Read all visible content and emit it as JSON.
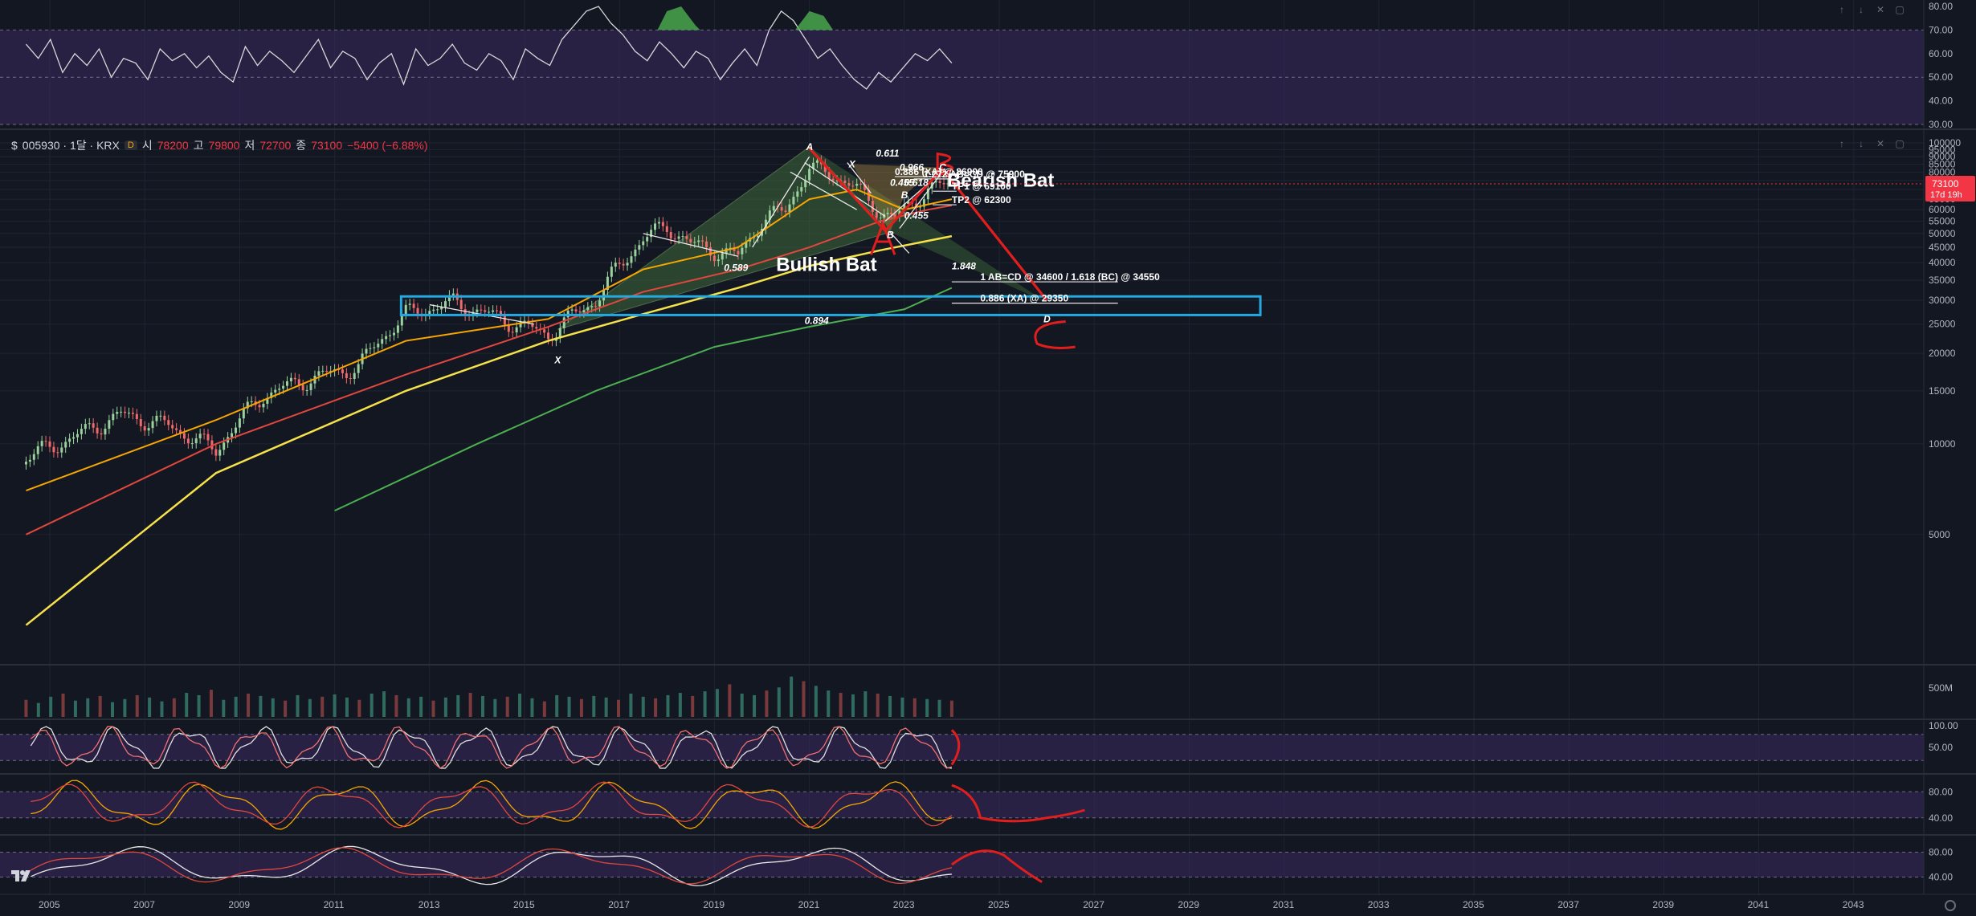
{
  "header": {
    "symbol": "005930 · 1달 · KRX",
    "dot_label": "D",
    "open_label": "시",
    "open": "78200",
    "high_label": "고",
    "high": "79800",
    "low_label": "저",
    "low": "72700",
    "close_label": "종",
    "close": "73100",
    "change": "−5400 (−6.88%)"
  },
  "price_badge": {
    "value": "73100",
    "countdown": "17d 19h"
  },
  "colors": {
    "background": "#131722",
    "grid": "#1f2433",
    "axis_text": "#b2b5be",
    "rsi_band": "#3a2a5e",
    "red_drawing": "#e01e1e",
    "cyan_box": "#23a8e0",
    "pattern_fill": "#3f6a3a",
    "ma_orange": "#f7a600",
    "ma_red": "#e2473e",
    "ma_yellow": "#f5e14a",
    "ma_green": "#4caf50",
    "candle_up": "#9ad19c",
    "candle_down": "#ef6a6a"
  },
  "chart_data": [
    {
      "type": "line",
      "panel": "top-oscillator",
      "y_ticks": [
        "80.00",
        "70.00",
        "60.00",
        "50.00",
        "40.00",
        "30.00"
      ],
      "ylim": [
        30,
        80
      ],
      "series": [
        {
          "values": [
            64,
            58,
            66,
            52,
            60,
            55,
            62,
            50,
            58,
            56,
            49,
            62,
            57,
            60,
            54,
            59,
            52,
            48,
            63,
            55,
            61,
            57,
            52,
            59,
            66,
            54,
            61,
            58,
            49,
            56,
            60,
            47,
            62,
            55,
            58,
            64,
            56,
            53,
            60,
            57,
            49,
            62,
            58,
            55,
            66,
            72,
            78,
            80,
            73,
            68,
            61,
            57,
            65,
            60,
            54,
            61,
            58,
            49,
            56,
            62,
            55,
            70,
            78,
            74,
            66,
            58,
            62,
            55,
            49,
            45,
            52,
            48,
            54,
            60,
            57,
            62,
            56
          ]
        }
      ]
    },
    {
      "type": "candlestick",
      "panel": "main",
      "x_ticks": [
        "2005",
        "2007",
        "2009",
        "2011",
        "2013",
        "2015",
        "2017",
        "2019",
        "2021",
        "2023",
        "2025",
        "2027",
        "2029",
        "2031",
        "2033",
        "2035",
        "2037",
        "2039",
        "2041",
        "2043"
      ],
      "y_ticks": [
        "100000",
        "95000",
        "90000",
        "85000",
        "80000",
        "75000",
        "70000",
        "65000",
        "60000",
        "55000",
        "50000",
        "45000",
        "40000",
        "35000",
        "30000",
        "25000",
        "20000",
        "15000",
        "10000",
        "5000"
      ],
      "ylim": [
        2000,
        100000
      ],
      "close_series": [
        [
          2004.5,
          9000
        ],
        [
          2005.5,
          10500
        ],
        [
          2006.5,
          12500
        ],
        [
          2007.5,
          11500
        ],
        [
          2008.5,
          9500
        ],
        [
          2009.5,
          14500
        ],
        [
          2010.5,
          16500
        ],
        [
          2011.5,
          18000
        ],
        [
          2012.5,
          27000
        ],
        [
          2013.5,
          29500
        ],
        [
          2014.5,
          26000
        ],
        [
          2015.5,
          23000
        ],
        [
          2016.5,
          30000
        ],
        [
          2017.5,
          48000
        ],
        [
          2018.0,
          53000
        ],
        [
          2018.5,
          46000
        ],
        [
          2019.5,
          42000
        ],
        [
          2020.0,
          55000
        ],
        [
          2020.5,
          60000
        ],
        [
          2021.0,
          82000
        ],
        [
          2021.5,
          79000
        ],
        [
          2022.0,
          70000
        ],
        [
          2022.5,
          59000
        ],
        [
          2022.8,
          56000
        ],
        [
          2023.0,
          60000
        ],
        [
          2023.5,
          70000
        ],
        [
          2024.0,
          73100
        ]
      ],
      "moving_averages": [
        {
          "color": "orange",
          "points": [
            [
              2004.5,
              7000
            ],
            [
              2008.5,
              12000
            ],
            [
              2012.5,
              22000
            ],
            [
              2015.5,
              26000
            ],
            [
              2017.5,
              38000
            ],
            [
              2019.5,
              45000
            ],
            [
              2021.0,
              65000
            ],
            [
              2022.0,
              70000
            ],
            [
              2023.0,
              60000
            ],
            [
              2024.0,
              65000
            ]
          ]
        },
        {
          "color": "red",
          "points": [
            [
              2004.5,
              5000
            ],
            [
              2008.5,
              10000
            ],
            [
              2012.5,
              17000
            ],
            [
              2015.5,
              24500
            ],
            [
              2017.5,
              32000
            ],
            [
              2019.5,
              38000
            ],
            [
              2021.0,
              45000
            ],
            [
              2022.5,
              55000
            ],
            [
              2023.5,
              60000
            ],
            [
              2024.0,
              62000
            ]
          ]
        },
        {
          "color": "yellow",
          "points": [
            [
              2004.5,
              2500
            ],
            [
              2008.5,
              8000
            ],
            [
              2012.5,
              15000
            ],
            [
              2015.5,
              22000
            ],
            [
              2017.5,
              27000
            ],
            [
              2019.5,
              33000
            ],
            [
              2021.0,
              39000
            ],
            [
              2022.5,
              44000
            ],
            [
              2024.0,
              49000
            ]
          ]
        },
        {
          "color": "green",
          "points": [
            [
              2011.0,
              6000
            ],
            [
              2014.0,
              10000
            ],
            [
              2016.5,
              15000
            ],
            [
              2019.0,
              21000
            ],
            [
              2021.0,
              24500
            ],
            [
              2023.0,
              28000
            ],
            [
              2024.0,
              33000
            ]
          ]
        }
      ],
      "annotations": {
        "pattern_labels": [
          "Bullish Bat",
          "Bearish Bat"
        ],
        "point_labels": [
          {
            "t": "A",
            "x": 2021.0,
            "y": 97000
          },
          {
            "t": "X",
            "x": 2015.7,
            "y": 19000
          },
          {
            "t": "B",
            "x": 2022.7,
            "y": 49500
          },
          {
            "t": "X",
            "x": 2021.9,
            "y": 85000
          },
          {
            "t": "B",
            "x": 2023.0,
            "y": 67000
          },
          {
            "t": "C",
            "x": 2023.8,
            "y": 83000
          },
          {
            "t": "D",
            "x": 2026.0,
            "y": 26000
          }
        ],
        "ratio_labels": [
          {
            "t": "0.611",
            "x": 2022.4,
            "y": 90000
          },
          {
            "t": "0.966",
            "x": 2022.9,
            "y": 81000
          },
          {
            "t": "0.455",
            "x": 2022.7,
            "y": 72000
          },
          {
            "t": "0.618",
            "x": 2023.0,
            "y": 72000
          },
          {
            "t": "0.455",
            "x": 2023.0,
            "y": 56000
          },
          {
            "t": "1.848",
            "x": 2024.0,
            "y": 38000
          },
          {
            "t": "0.589",
            "x": 2019.2,
            "y": 37500
          },
          {
            "t": "0.894",
            "x": 2020.9,
            "y": 25000
          }
        ],
        "level_labels": [
          {
            "t": "0.886 (XA) @ 86900",
            "x": 2022.8,
            "y": 77300
          },
          {
            "t": "1.272 AB=CD @ 75900",
            "x": 2023.4,
            "y": 75900
          },
          {
            "t": "TP1 @ 69100",
            "x": 2024.0,
            "y": 69100
          },
          {
            "t": "TP2 @ 62300",
            "x": 2024.0,
            "y": 62300
          },
          {
            "t": "1 AB=CD @ 34600 / 1.618 (BC) @ 34550",
            "x": 2024.6,
            "y": 34550
          },
          {
            "t": "0.886 (XA) @ 29350",
            "x": 2024.6,
            "y": 29350
          }
        ]
      }
    },
    {
      "type": "bar",
      "panel": "volume",
      "y_ticks": [
        "500M"
      ],
      "ylim": [
        0,
        600
      ],
      "values": [
        220,
        180,
        260,
        300,
        210,
        240,
        270,
        190,
        230,
        280,
        250,
        200,
        240,
        310,
        280,
        350,
        220,
        260,
        300,
        270,
        240,
        210,
        280,
        230,
        260,
        290,
        250,
        220,
        300,
        330,
        280,
        240,
        260,
        210,
        250,
        280,
        310,
        270,
        230,
        260,
        300,
        240,
        200,
        280,
        260,
        230,
        270,
        250,
        220,
        300,
        260,
        240,
        280,
        310,
        270,
        330,
        360,
        420,
        300,
        280,
        340,
        380,
        520,
        460,
        400,
        340,
        310,
        290,
        330,
        300,
        270,
        250,
        240,
        230,
        220,
        210
      ]
    },
    {
      "type": "line",
      "panel": "stoch-rsi-1",
      "y_ticks": [
        "100.00",
        "50.00"
      ],
      "ylim": [
        0,
        100
      ]
    },
    {
      "type": "line",
      "panel": "stoch-rsi-2",
      "y_ticks": [
        "80.00",
        "40.00"
      ],
      "ylim": [
        20,
        100
      ]
    },
    {
      "type": "line",
      "panel": "macd-like",
      "y_ticks": [
        "80.00",
        "40.00"
      ],
      "ylim": [
        20,
        100
      ]
    }
  ]
}
